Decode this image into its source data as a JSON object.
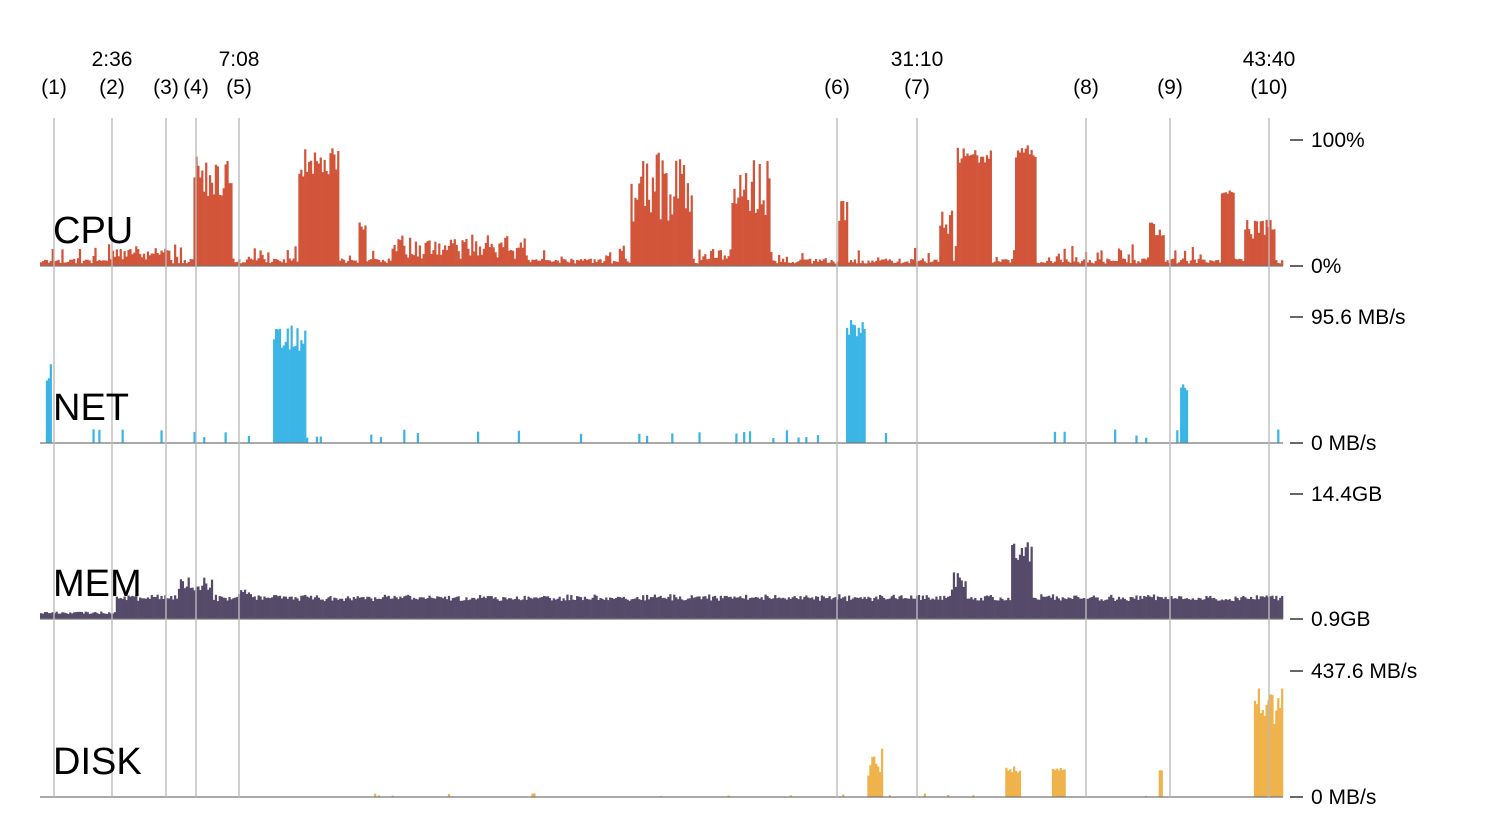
{
  "chart_data": [
    {
      "type": "bar",
      "title": "CPU",
      "color": "#d2553a",
      "ylim": [
        0,
        100
      ],
      "tick_labels": [
        "100%",
        "0%"
      ],
      "x_unit": "seconds",
      "x_range": [
        0,
        2640
      ],
      "spikes": [
        {
          "x": [
            265,
            470
          ],
          "y": [
            5,
            15
          ]
        },
        {
          "x": [
            560,
            690
          ],
          "y": [
            55,
            95
          ]
        },
        {
          "x": [
            940,
            1080
          ],
          "y": [
            70,
            95
          ]
        },
        {
          "x": [
            1160,
            1180
          ],
          "y": [
            25,
            40
          ]
        },
        {
          "x": [
            1300,
            1760
          ],
          "y": [
            5,
            25
          ]
        },
        {
          "x": [
            2140,
            2360
          ],
          "y": [
            35,
            90
          ]
        },
        {
          "x": [
            2400,
            2540
          ],
          "y": [
            5,
            15
          ]
        },
        {
          "x": [
            2510,
            2640
          ],
          "y": [
            35,
            85
          ]
        },
        {
          "x": [
            2890,
            2920
          ],
          "y": [
            30,
            60
          ]
        },
        {
          "x": [
            3260,
            3300
          ],
          "y": [
            25,
            45
          ]
        },
        {
          "x": [
            3320,
            3440
          ],
          "y": [
            80,
            96
          ]
        },
        {
          "x": [
            3530,
            3600
          ],
          "y": [
            85,
            96
          ]
        },
        {
          "x": [
            4020,
            4070
          ],
          "y": [
            20,
            35
          ]
        },
        {
          "x": [
            4280,
            4320
          ],
          "y": [
            55,
            60
          ]
        },
        {
          "x": [
            4360,
            4470
          ],
          "y": [
            20,
            40
          ]
        }
      ]
    },
    {
      "type": "bar",
      "title": "NET",
      "color": "#3bb5e6",
      "ylim": [
        0,
        95.6
      ],
      "tick_labels": [
        "95.6 MB/s",
        "0 MB/s"
      ],
      "spikes": [
        {
          "x": [
            25,
            40
          ],
          "y": [
            40,
            60
          ]
        },
        {
          "x": [
            850,
            960
          ],
          "y": [
            70,
            90
          ]
        },
        {
          "x": [
            2920,
            2985
          ],
          "y": [
            80,
            95
          ]
        },
        {
          "x": [
            4130,
            4150
          ],
          "y": [
            40,
            45
          ]
        }
      ]
    },
    {
      "type": "bar",
      "title": "MEM",
      "color": "#554a69",
      "ylim": [
        0.9,
        14.4
      ],
      "tick_labels": [
        "14.4GB",
        "0.9GB"
      ],
      "spikes": [
        {
          "x": [
            500,
            620
          ],
          "y": [
            4.0,
            5.7
          ]
        },
        {
          "x": [
            720,
            760
          ],
          "y": [
            3.5,
            4.2
          ]
        },
        {
          "x": [
            3300,
            3350
          ],
          "y": [
            4.0,
            6.0
          ]
        },
        {
          "x": [
            3520,
            3590
          ],
          "y": [
            7.0,
            9.5
          ]
        },
        {
          "x": [
            4380,
            4420
          ],
          "y": [
            2.6,
            3.0
          ]
        }
      ]
    },
    {
      "type": "bar",
      "title": "DISK",
      "color": "#f0b24a",
      "ylim": [
        0,
        437.6
      ],
      "tick_labels": [
        "437.6 MB/s",
        "0 MB/s"
      ],
      "spikes": [
        {
          "x": [
            1780,
            1790
          ],
          "y": [
            5,
            15
          ]
        },
        {
          "x": [
            3000,
            3050
          ],
          "y": [
            70,
            170
          ]
        },
        {
          "x": [
            3500,
            3550
          ],
          "y": [
            80,
            110
          ]
        },
        {
          "x": [
            3670,
            3710
          ],
          "y": [
            85,
            105
          ]
        },
        {
          "x": [
            4050,
            4060
          ],
          "y": [
            90,
            100
          ]
        },
        {
          "x": [
            4400,
            4500
          ],
          "y": [
            250,
            380
          ]
        }
      ]
    }
  ],
  "markers": [
    {
      "num": "(1)",
      "time": "",
      "x": 54
    },
    {
      "num": "(2)",
      "time": "2:36",
      "x": 112
    },
    {
      "num": "(3)",
      "time": "",
      "x": 166
    },
    {
      "num": "(4)",
      "time": "",
      "x": 196
    },
    {
      "num": "(5)",
      "time": "7:08",
      "x": 239
    },
    {
      "num": "(6)",
      "time": "",
      "x": 837
    },
    {
      "num": "(7)",
      "time": "31:10",
      "x": 917
    },
    {
      "num": "(8)",
      "time": "",
      "x": 1086
    },
    {
      "num": "(9)",
      "time": "",
      "x": 1170
    },
    {
      "num": "(10)",
      "time": "43:40",
      "x": 1269
    }
  ]
}
